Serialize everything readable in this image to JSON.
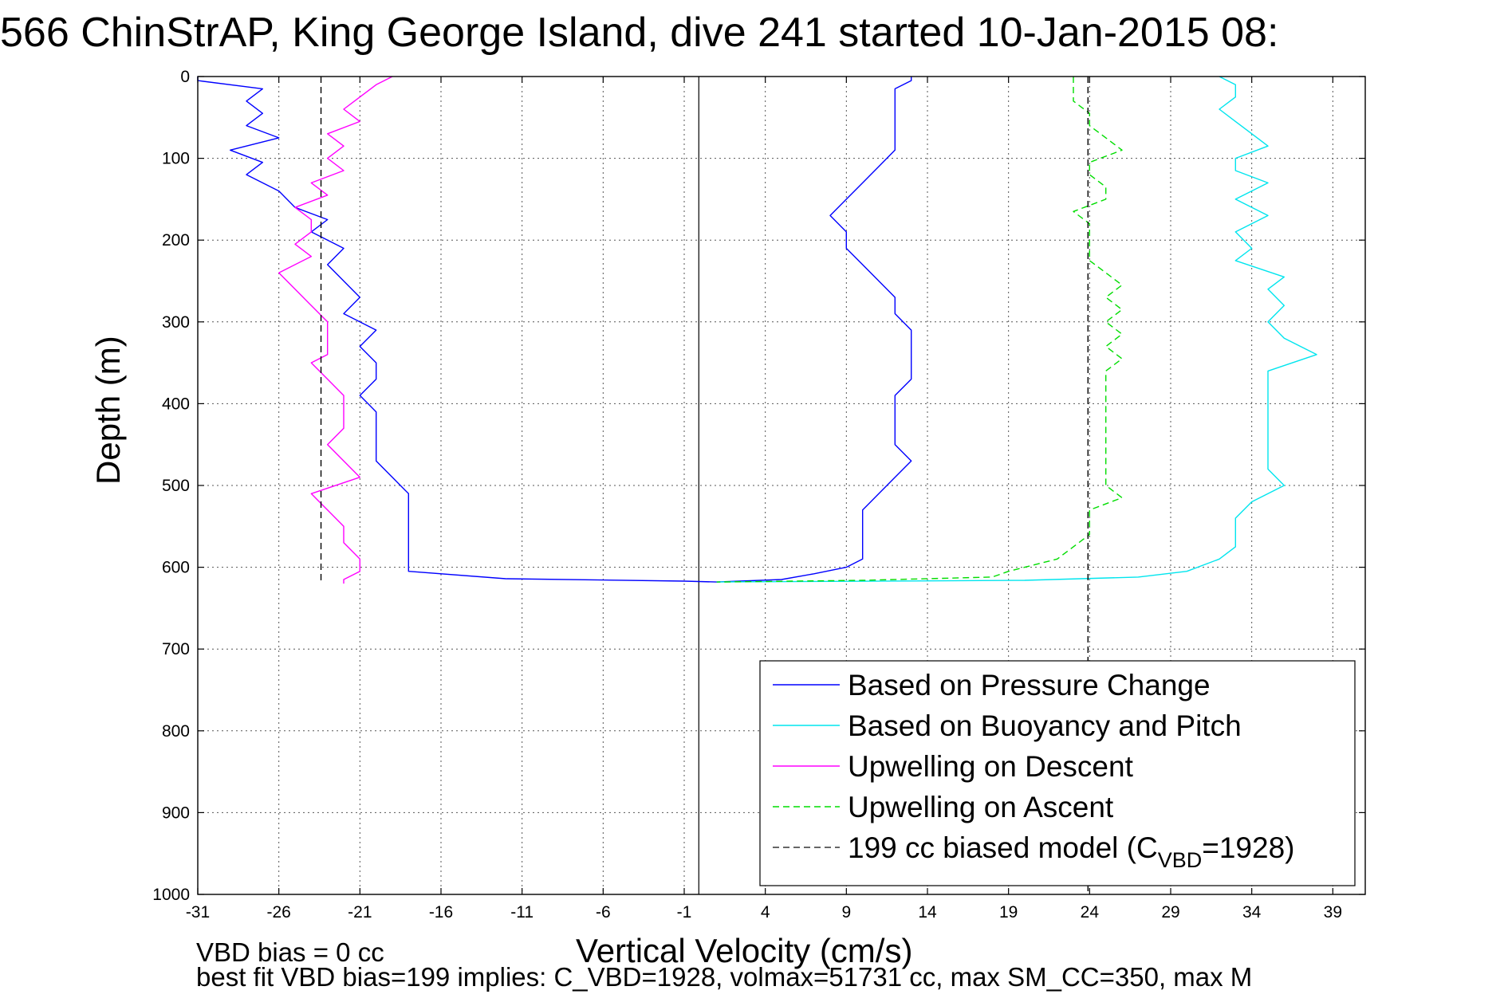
{
  "chart_data": {
    "type": "line",
    "title": "566 ChinStrAP, King George Island, dive 241 started 10-Jan-2015 08:",
    "xlabel": "Vertical Velocity (cm/s)",
    "ylabel": "Depth (m)",
    "xlim": [
      -31,
      41
    ],
    "ylim": [
      0,
      1000
    ],
    "y_reversed": true,
    "grid": true,
    "xticks": [
      "-31",
      "-26",
      "-21",
      "-16",
      "-11",
      "-6",
      "-1",
      "4",
      "9",
      "14",
      "19",
      "24",
      "29",
      "34",
      "39"
    ],
    "yticks": [
      "0",
      "100",
      "200",
      "300",
      "400",
      "500",
      "600",
      "700",
      "800",
      "900",
      "1000"
    ],
    "legend_position": "bottom-right",
    "series": [
      {
        "name": "Based on Pressure Change",
        "color": "#0000ff",
        "style": "solid",
        "points": [
          [
            -31,
            0
          ],
          [
            -31,
            5
          ],
          [
            -27,
            15
          ],
          [
            -28,
            30
          ],
          [
            -27,
            45
          ],
          [
            -28,
            60
          ],
          [
            -26,
            75
          ],
          [
            -29,
            90
          ],
          [
            -27,
            105
          ],
          [
            -28,
            120
          ],
          [
            -26,
            140
          ],
          [
            -25,
            160
          ],
          [
            -23,
            175
          ],
          [
            -24,
            190
          ],
          [
            -22,
            210
          ],
          [
            -23,
            230
          ],
          [
            -22,
            250
          ],
          [
            -21,
            270
          ],
          [
            -22,
            290
          ],
          [
            -20,
            310
          ],
          [
            -21,
            330
          ],
          [
            -20,
            350
          ],
          [
            -20,
            370
          ],
          [
            -21,
            390
          ],
          [
            -20,
            410
          ],
          [
            -20,
            430
          ],
          [
            -20,
            450
          ],
          [
            -20,
            470
          ],
          [
            -19,
            490
          ],
          [
            -18,
            510
          ],
          [
            -18,
            530
          ],
          [
            -18,
            550
          ],
          [
            -18,
            570
          ],
          [
            -18,
            590
          ],
          [
            -18,
            605
          ],
          [
            -12,
            614
          ],
          [
            -1,
            617
          ],
          [
            1,
            618
          ],
          [
            5,
            615
          ],
          [
            7,
            608
          ],
          [
            9,
            600
          ],
          [
            10,
            590
          ],
          [
            10,
            570
          ],
          [
            10,
            550
          ],
          [
            10,
            530
          ],
          [
            11,
            510
          ],
          [
            12,
            490
          ],
          [
            13,
            470
          ],
          [
            12,
            450
          ],
          [
            12,
            430
          ],
          [
            12,
            410
          ],
          [
            12,
            390
          ],
          [
            13,
            370
          ],
          [
            13,
            350
          ],
          [
            13,
            330
          ],
          [
            13,
            310
          ],
          [
            12,
            290
          ],
          [
            12,
            270
          ],
          [
            11,
            250
          ],
          [
            10,
            230
          ],
          [
            9,
            210
          ],
          [
            9,
            190
          ],
          [
            8,
            170
          ],
          [
            9,
            150
          ],
          [
            10,
            130
          ],
          [
            11,
            110
          ],
          [
            12,
            90
          ],
          [
            12,
            70
          ],
          [
            12,
            50
          ],
          [
            12,
            30
          ],
          [
            12,
            15
          ],
          [
            13,
            5
          ],
          [
            13,
            0
          ]
        ]
      },
      {
        "name": "Based on Buoyancy and Pitch",
        "color": "#00e5ee",
        "style": "solid",
        "points": [
          [
            32,
            0
          ],
          [
            33,
            10
          ],
          [
            33,
            25
          ],
          [
            32,
            40
          ],
          [
            33,
            55
          ],
          [
            34,
            70
          ],
          [
            35,
            85
          ],
          [
            33,
            100
          ],
          [
            33,
            115
          ],
          [
            35,
            130
          ],
          [
            33,
            150
          ],
          [
            35,
            170
          ],
          [
            33,
            190
          ],
          [
            34,
            210
          ],
          [
            33,
            225
          ],
          [
            36,
            245
          ],
          [
            35,
            260
          ],
          [
            36,
            280
          ],
          [
            35,
            300
          ],
          [
            36,
            320
          ],
          [
            38,
            340
          ],
          [
            35,
            360
          ],
          [
            35,
            380
          ],
          [
            35,
            400
          ],
          [
            35,
            420
          ],
          [
            35,
            440
          ],
          [
            35,
            460
          ],
          [
            35,
            480
          ],
          [
            36,
            500
          ],
          [
            34,
            520
          ],
          [
            33,
            540
          ],
          [
            33,
            560
          ],
          [
            33,
            575
          ],
          [
            32,
            590
          ],
          [
            30,
            605
          ],
          [
            27,
            612
          ],
          [
            20,
            616
          ],
          [
            1,
            618
          ]
        ]
      },
      {
        "name": "Upwelling on Descent",
        "color": "#ff00ff",
        "style": "solid",
        "points": [
          [
            -19,
            0
          ],
          [
            -20,
            10
          ],
          [
            -21,
            25
          ],
          [
            -22,
            40
          ],
          [
            -21,
            55
          ],
          [
            -23,
            70
          ],
          [
            -22,
            85
          ],
          [
            -23,
            100
          ],
          [
            -22,
            115
          ],
          [
            -24,
            130
          ],
          [
            -23,
            145
          ],
          [
            -25,
            160
          ],
          [
            -24,
            175
          ],
          [
            -24,
            190
          ],
          [
            -25,
            205
          ],
          [
            -24,
            220
          ],
          [
            -26,
            240
          ],
          [
            -25,
            260
          ],
          [
            -24,
            280
          ],
          [
            -23,
            300
          ],
          [
            -23,
            320
          ],
          [
            -23,
            340
          ],
          [
            -24,
            350
          ],
          [
            -23,
            370
          ],
          [
            -22,
            390
          ],
          [
            -22,
            410
          ],
          [
            -22,
            430
          ],
          [
            -23,
            450
          ],
          [
            -22,
            470
          ],
          [
            -21,
            490
          ],
          [
            -24,
            510
          ],
          [
            -23,
            530
          ],
          [
            -22,
            550
          ],
          [
            -22,
            570
          ],
          [
            -21,
            590
          ],
          [
            -21,
            605
          ],
          [
            -22,
            615
          ],
          [
            -22,
            620
          ]
        ]
      },
      {
        "name": "Upwelling on Ascent",
        "color": "#00dd00",
        "style": "dashed",
        "points": [
          [
            23,
            0
          ],
          [
            23,
            15
          ],
          [
            23,
            30
          ],
          [
            24,
            45
          ],
          [
            24,
            60
          ],
          [
            25,
            75
          ],
          [
            26,
            90
          ],
          [
            24,
            105
          ],
          [
            24,
            120
          ],
          [
            25,
            135
          ],
          [
            25,
            150
          ],
          [
            23,
            165
          ],
          [
            24,
            180
          ],
          [
            24,
            195
          ],
          [
            24,
            210
          ],
          [
            24,
            225
          ],
          [
            25,
            240
          ],
          [
            26,
            255
          ],
          [
            25,
            270
          ],
          [
            26,
            285
          ],
          [
            25,
            300
          ],
          [
            26,
            315
          ],
          [
            25,
            330
          ],
          [
            26,
            345
          ],
          [
            25,
            360
          ],
          [
            25,
            380
          ],
          [
            25,
            400
          ],
          [
            25,
            420
          ],
          [
            25,
            440
          ],
          [
            25,
            460
          ],
          [
            25,
            480
          ],
          [
            25,
            500
          ],
          [
            26,
            515
          ],
          [
            24,
            530
          ],
          [
            24,
            545
          ],
          [
            24,
            560
          ],
          [
            23,
            575
          ],
          [
            22,
            590
          ],
          [
            19,
            605
          ],
          [
            18,
            612
          ],
          [
            10,
            616
          ],
          [
            1,
            618
          ]
        ]
      },
      {
        "name": "199 cc biased model (C_VBD=1928)",
        "color": "#000000",
        "style": "dashed",
        "segments": [
          [
            [
              -23.4,
              0
            ],
            [
              -23.4,
              620
            ]
          ],
          [
            [
              23.9,
              0
            ],
            [
              23.9,
              1000
            ]
          ]
        ]
      }
    ],
    "legend": [
      {
        "text": "Based on Pressure Change",
        "color": "#0000ff",
        "style": "solid"
      },
      {
        "text": "Based on Buoyancy and Pitch",
        "color": "#00e5ee",
        "style": "solid"
      },
      {
        "text": "Upwelling on Descent",
        "color": "#ff00ff",
        "style": "solid"
      },
      {
        "text": "Upwelling on Ascent",
        "color": "#00dd00",
        "style": "dashed"
      },
      {
        "text": "199 cc biased model (C",
        "sub": "VBD",
        "tail": "=1928)",
        "color": "#333333",
        "style": "dashed"
      }
    ],
    "annotations": [
      "VBD bias = 0 cc",
      "best fit VBD bias=199 implies: C_VBD=1928, volmax=51731 cc, max SM_CC=350, max M"
    ],
    "zero_line_x": -0.1
  }
}
